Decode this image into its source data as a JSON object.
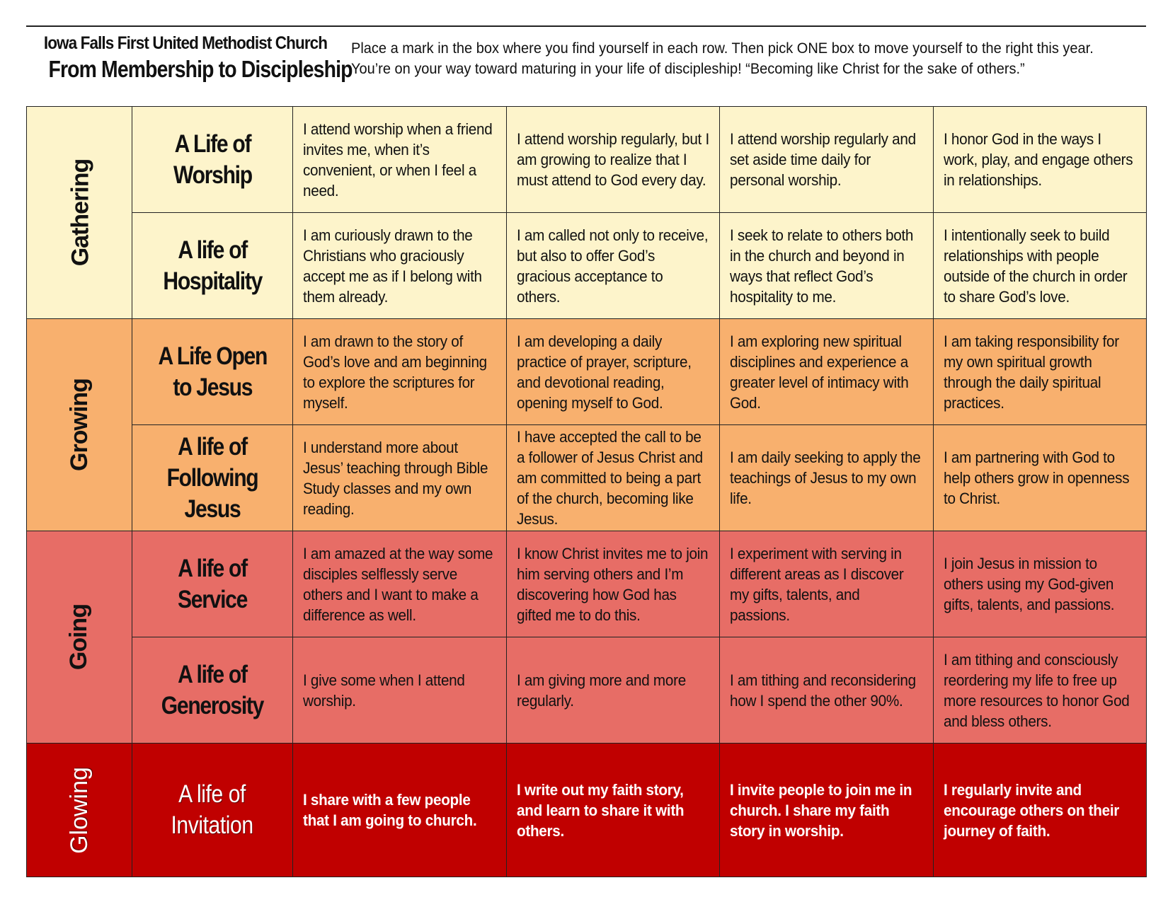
{
  "header": {
    "church_name": "Iowa Falls First United Methodist Church",
    "title": "From Membership to Discipleship",
    "instructions_line1": "Place a mark in the box where you find yourself in each row.  Then pick ONE box to move yourself to the right this year.",
    "instructions_line2": "You’re on your way toward maturing in your life of discipleship!  “Becoming like Christ for the sake of others.”"
  },
  "phases": {
    "gathering": "Gathering",
    "growing": "Growing",
    "going": "Going",
    "glowing": "Glowing"
  },
  "rows": [
    {
      "area": "A Life of\nWorship",
      "stages": [
        "I attend worship when a friend invites me, when it’s convenient, or when I feel a need.",
        "I attend worship regularly, but I am growing to realize that I must attend to God every day.",
        "I attend worship regularly and set aside time daily for personal worship.",
        "I honor God in the ways I work, play, and engage others in relationships."
      ]
    },
    {
      "area": "A life of\nHospitality",
      "stages": [
        "I am curiously drawn to the Christians who graciously accept me as if I belong with them already.",
        "I am called not only to receive, but also to offer God’s gracious acceptance to others.",
        "I seek to relate to others both in the church and beyond in ways that reflect God’s hospitality to me.",
        "I intentionally seek to build relationships with people outside of the church in order to share God’s love."
      ]
    },
    {
      "area": "A Life Open\nto Jesus",
      "stages": [
        "I am drawn to the story of God’s love and am beginning to explore the scriptures for myself.",
        "I am developing a daily practice of prayer, scripture, and devotional reading, opening myself to God.",
        "I am exploring new spiritual disciplines and experience a greater level of intimacy with God.",
        "I am taking responsibility for my own spiritual growth through the daily spiritual practices."
      ]
    },
    {
      "area": "A life of\nFollowing Jesus",
      "stages": [
        "I understand more about Jesus’ teaching through Bible Study classes and my own reading.",
        "I have accepted the call to be a follower of Jesus Christ and am committed to being a part of the church, becoming like Jesus.",
        "I am daily seeking to apply the teachings of Jesus to my own life.",
        "I am partnering with God to help others grow in openness to Christ."
      ]
    },
    {
      "area": "A life of\nService",
      "stages": [
        "I am amazed at the way some disciples selflessly serve others and I want to make a difference as well.",
        "I know Christ invites me to join him serving others and I’m discovering how God has gifted me to do this.",
        "I experiment with serving in different areas as I discover my gifts, talents, and passions.",
        "I join Jesus in mission to others using my God-given gifts, talents, and passions."
      ]
    },
    {
      "area": "A life of\nGenerosity",
      "stages": [
        "I give some when I attend worship.",
        "I am giving more and more regularly.",
        "I am tithing and reconsidering how I spend the other 90%.",
        "I am tithing and consciously reordering my life to free up more resources to honor God and bless others."
      ]
    },
    {
      "area": "A life of\nInvitation",
      "stages": [
        "I share with a few people that I am going to church.",
        "I write out my faith story, and learn to share it with others.",
        "I invite people to join me in church.  I share my faith story in worship.",
        "I regularly invite and encourage others on their journey of faith."
      ]
    }
  ],
  "colors": {
    "gathering": "#fdf4cb",
    "growing": "#f8b06e",
    "going": "#e76d66",
    "glowing": "#c00000"
  }
}
